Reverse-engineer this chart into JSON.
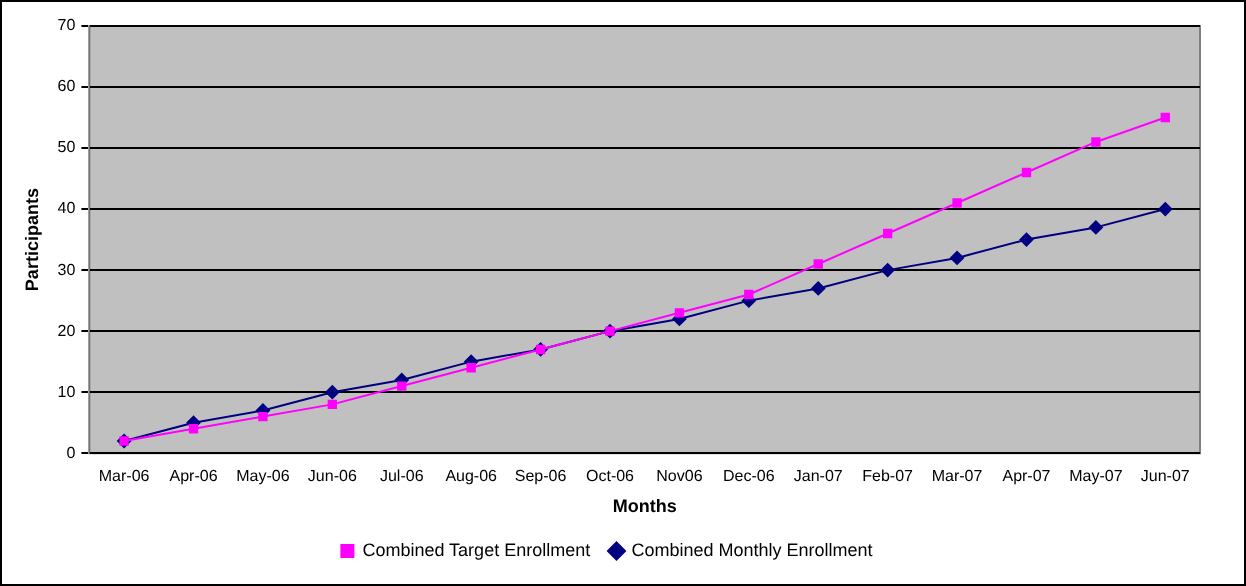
{
  "chart_data": {
    "type": "line",
    "xlabel": "Months",
    "ylabel": "Participants",
    "categories": [
      "Mar-06",
      "Apr-06",
      "May-06",
      "Jun-06",
      "Jul-06",
      "Aug-06",
      "Sep-06",
      "Oct-06",
      "Nov06",
      "Dec-06",
      "Jan-07",
      "Feb-07",
      "Mar-07",
      "Apr-07",
      "May-07",
      "Jun-07"
    ],
    "series": [
      {
        "name": "Combined Monthly Enrollment",
        "color": "#000080",
        "marker": "diamond",
        "values": [
          2,
          5,
          7,
          10,
          12,
          15,
          17,
          20,
          22,
          25,
          27,
          30,
          32,
          35,
          37,
          40
        ]
      },
      {
        "name": "Combined Target Enrollment",
        "color": "#ff00ff",
        "marker": "square",
        "values": [
          2,
          4,
          6,
          8,
          11,
          14,
          17,
          20,
          23,
          26,
          31,
          36,
          41,
          46,
          51,
          55
        ]
      }
    ],
    "ylim": [
      0,
      70
    ],
    "yticks": [
      0,
      10,
      20,
      30,
      40,
      50,
      60,
      70
    ],
    "grid": "y",
    "legend": "bottom",
    "line_style": "solid"
  }
}
